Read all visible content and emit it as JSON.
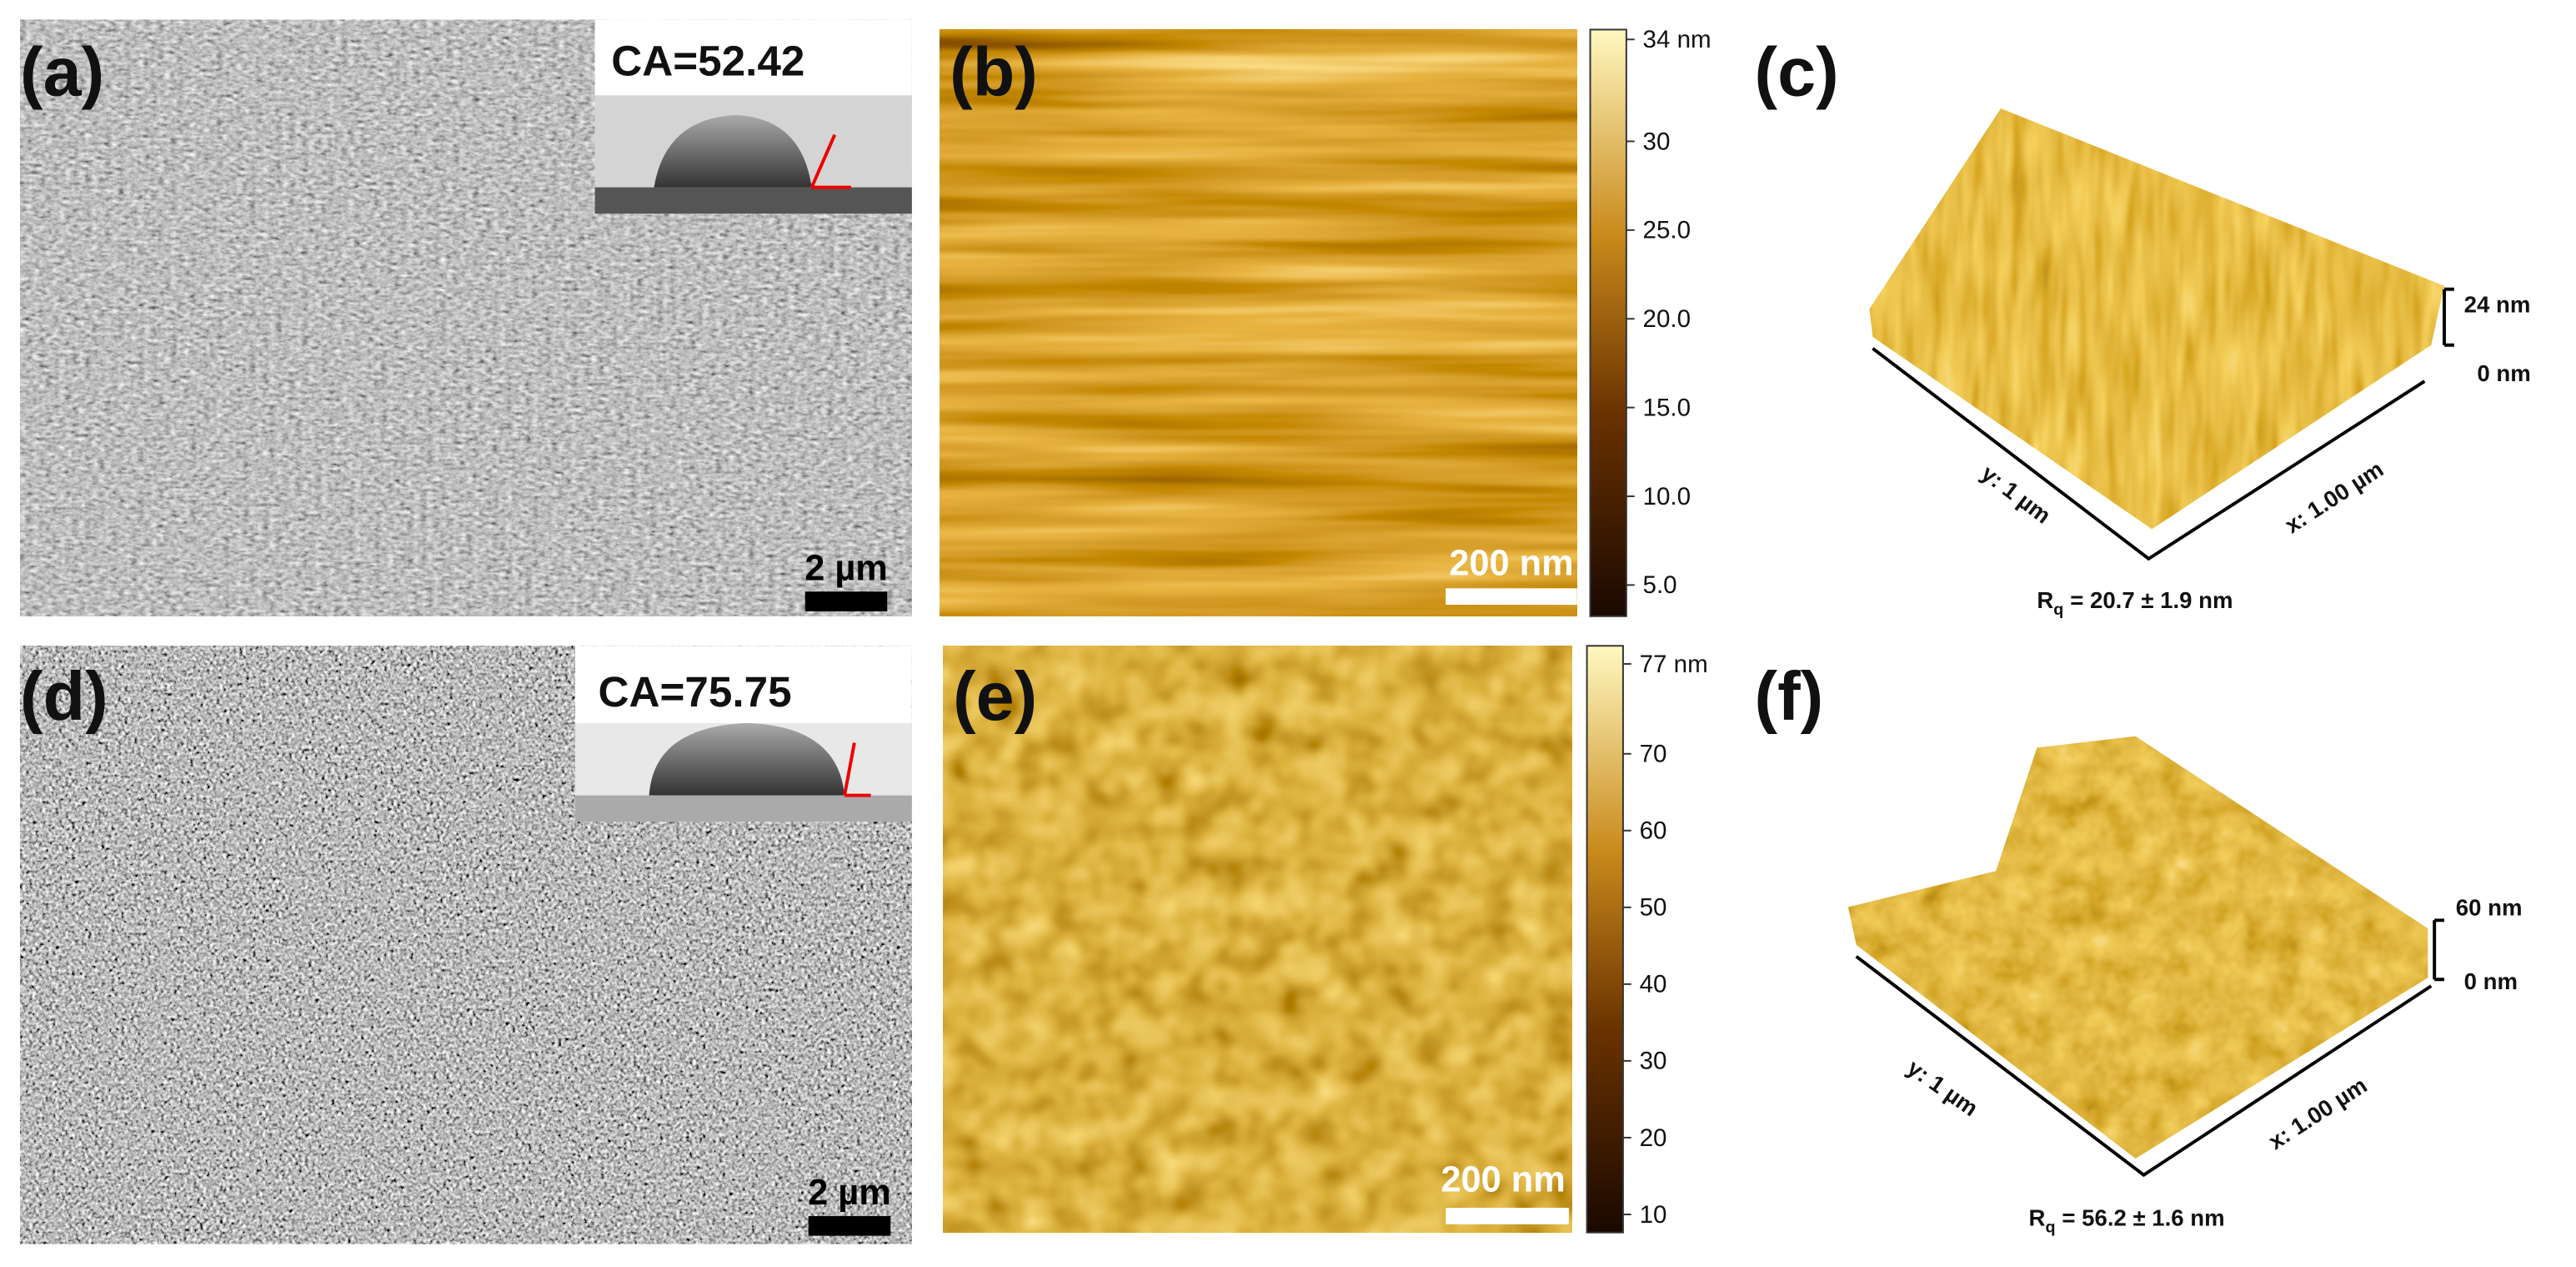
{
  "panels": [
    {
      "label": "(a)",
      "contact_angle": "CA=52.42",
      "scale_bar": "2 µm"
    },
    {
      "label": "(b)",
      "scale_bar": "200 nm",
      "colorbar_ticks": [
        "34 nm",
        "30",
        "25.0",
        "20.0",
        "15.0",
        "10.0",
        "5.0"
      ]
    },
    {
      "label": "(c)",
      "z_max": "24 nm",
      "z_min": "0 nm",
      "y_axis": "y:  1 µm",
      "x_axis": "x: 1.00 µm",
      "rq_symbol": "R",
      "rq_subscript": "q",
      "rq_value": "= 20.7 ± 1.9 nm"
    },
    {
      "label": "(d)",
      "contact_angle": "CA=75.75",
      "scale_bar": "2 µm"
    },
    {
      "label": "(e)",
      "scale_bar": "200 nm",
      "colorbar_ticks": [
        "77 nm",
        "70",
        "60",
        "50",
        "40",
        "30",
        "20",
        "10"
      ]
    },
    {
      "label": "(f)",
      "z_max": "60 nm",
      "z_min": "0 nm",
      "y_axis": "y:  1 µm",
      "x_axis": "x: 1.00 µm",
      "rq_symbol": "R",
      "rq_subscript": "q",
      "rq_value": "= 56.2 ± 1.6 nm"
    }
  ]
}
